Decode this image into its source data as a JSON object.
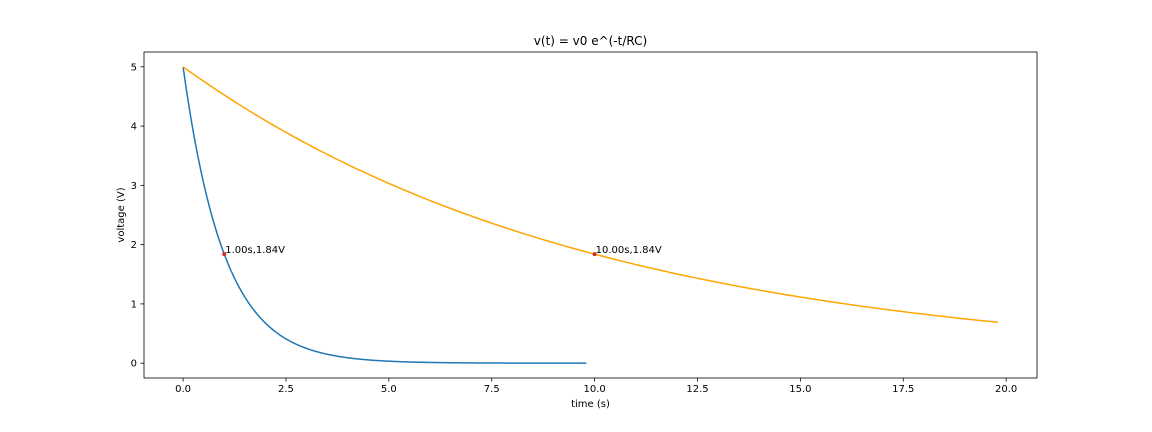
{
  "chart_data": {
    "type": "line",
    "title": "v(t) = v0 e^(-t/RC)",
    "xlabel": "time (s)",
    "ylabel": "voltage (V)",
    "xlim": [
      -0.95,
      20.75
    ],
    "ylim": [
      -0.25,
      5.25
    ],
    "xticks": [
      0.0,
      2.5,
      5.0,
      7.5,
      10.0,
      12.5,
      15.0,
      17.5,
      20.0
    ],
    "xtick_labels": [
      "0.0",
      "2.5",
      "5.0",
      "7.5",
      "10.0",
      "12.5",
      "15.0",
      "17.5",
      "20.0"
    ],
    "yticks": [
      0,
      1,
      2,
      3,
      4,
      5
    ],
    "ytick_labels": [
      "0",
      "1",
      "2",
      "3",
      "4",
      "5"
    ],
    "grid": false,
    "series": [
      {
        "color": "#1f77b4",
        "v0": 5,
        "RC": 1,
        "x": [
          0.0,
          0.2,
          0.4,
          0.6,
          0.8,
          1.0,
          1.25,
          1.5,
          1.75,
          2.0,
          2.5,
          3.0,
          3.5,
          4.0,
          4.5,
          5.0,
          6.0,
          7.0,
          8.0,
          9.0,
          9.8
        ],
        "y": [
          5.0,
          4.09,
          3.35,
          2.74,
          2.25,
          1.84,
          1.43,
          1.12,
          0.87,
          0.68,
          0.41,
          0.25,
          0.15,
          0.09,
          0.06,
          0.03,
          0.01,
          0.005,
          0.002,
          0.001,
          0.0003
        ]
      },
      {
        "color": "#ffa500",
        "v0": 5,
        "RC": 10,
        "x": [
          0.0,
          1.0,
          2.0,
          3.0,
          4.0,
          5.0,
          6.0,
          7.0,
          8.0,
          9.0,
          10.0,
          11.0,
          12.0,
          13.0,
          14.0,
          15.0,
          16.0,
          17.0,
          18.0,
          19.0,
          19.8
        ],
        "y": [
          5.0,
          4.52,
          4.09,
          3.7,
          3.35,
          3.03,
          2.74,
          2.48,
          2.25,
          2.03,
          1.84,
          1.66,
          1.51,
          1.36,
          1.23,
          1.12,
          1.01,
          0.91,
          0.83,
          0.75,
          0.69
        ]
      }
    ],
    "markers": [
      {
        "x": 1.0,
        "y": 1.84,
        "color": "#d62728",
        "label": "1.00s,1.84V"
      },
      {
        "x": 10.0,
        "y": 1.84,
        "color": "#d62728",
        "label": "10.00s,1.84V"
      }
    ]
  }
}
